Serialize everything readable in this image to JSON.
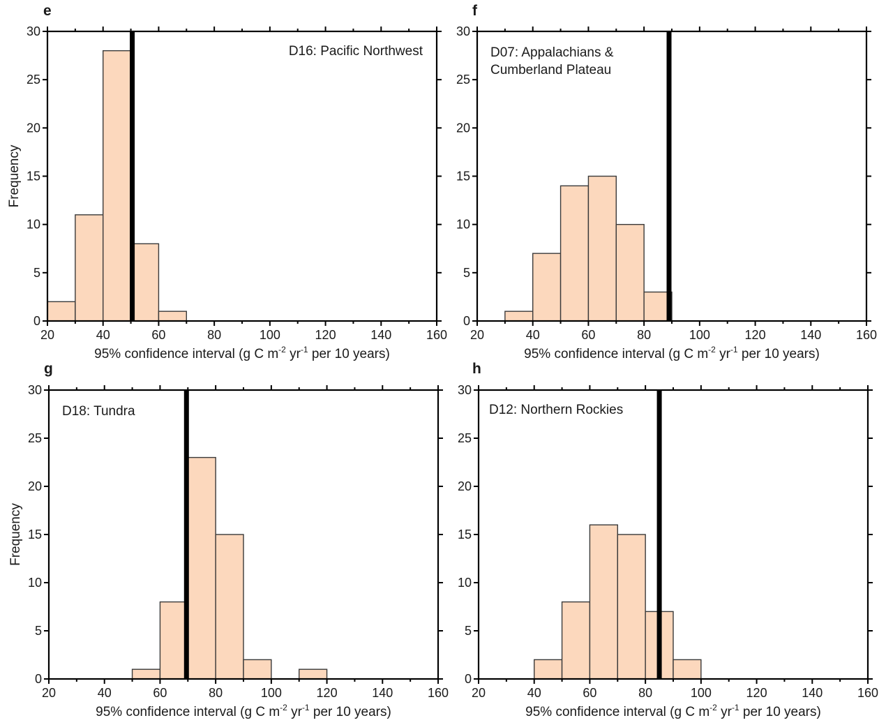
{
  "chart_data": [
    {
      "type": "bar",
      "panel": "e",
      "annotation": [
        "D16: Pacific Northwest"
      ],
      "xlabel": "95% confidence interval (g C m",
      "xlabel_sup1": "-2",
      "xlabel_mid": " yr",
      "xlabel_sup2": "-1",
      "xlabel_end": " per 10 years)",
      "ylabel": "Frequency",
      "xlim": [
        20,
        160
      ],
      "ylim": [
        0,
        30
      ],
      "xticks": [
        20,
        40,
        60,
        80,
        100,
        120,
        140,
        160
      ],
      "yticks": [
        0,
        5,
        10,
        15,
        20,
        25,
        30
      ],
      "bin_width": 10,
      "bins": [
        20,
        30,
        40,
        50,
        60
      ],
      "values": [
        2,
        11,
        28,
        8,
        1
      ],
      "reference_line": 50.5
    },
    {
      "type": "bar",
      "panel": "f",
      "annotation": [
        "D07: Appalachians &",
        "Cumberland Plateau"
      ],
      "xlabel": "95% confidence interval (g C m",
      "xlabel_sup1": "-2",
      "xlabel_mid": " yr",
      "xlabel_sup2": "-1",
      "xlabel_end": " per 10 years)",
      "ylabel": "",
      "xlim": [
        20,
        160
      ],
      "ylim": [
        0,
        30
      ],
      "xticks": [
        20,
        40,
        60,
        80,
        100,
        120,
        140,
        160
      ],
      "yticks": [
        0,
        5,
        10,
        15,
        20,
        25,
        30
      ],
      "bin_width": 10,
      "bins": [
        30,
        40,
        50,
        60,
        70,
        80
      ],
      "values": [
        1,
        7,
        14,
        15,
        10,
        3
      ],
      "reference_line": 89
    },
    {
      "type": "bar",
      "panel": "g",
      "annotation": [
        "D18: Tundra"
      ],
      "xlabel": "95% confidence interval (g C m",
      "xlabel_sup1": "-2",
      "xlabel_mid": " yr",
      "xlabel_sup2": "-1",
      "xlabel_end": " per 10 years)",
      "ylabel": "Frequency",
      "xlim": [
        20,
        160
      ],
      "ylim": [
        0,
        30
      ],
      "xticks": [
        20,
        40,
        60,
        80,
        100,
        120,
        140,
        160
      ],
      "yticks": [
        0,
        5,
        10,
        15,
        20,
        25,
        30
      ],
      "bin_width": 10,
      "bins": [
        50,
        60,
        70,
        80,
        90,
        110
      ],
      "values": [
        1,
        8,
        23,
        15,
        2,
        1
      ],
      "reference_line": 69.5
    },
    {
      "type": "bar",
      "panel": "h",
      "annotation": [
        "D12: Northern Rockies"
      ],
      "xlabel": "95% confidence interval (g C m",
      "xlabel_sup1": "-2",
      "xlabel_mid": " yr",
      "xlabel_sup2": "-1",
      "xlabel_end": " per 10 years)",
      "ylabel": "",
      "xlim": [
        20,
        160
      ],
      "ylim": [
        0,
        30
      ],
      "xticks": [
        20,
        40,
        60,
        80,
        100,
        120,
        140,
        160
      ],
      "yticks": [
        0,
        5,
        10,
        15,
        20,
        25,
        30
      ],
      "bin_width": 10,
      "bins": [
        40,
        50,
        60,
        70,
        80,
        90
      ],
      "values": [
        2,
        8,
        16,
        15,
        7,
        2
      ],
      "reference_line": 85
    }
  ],
  "colors": {
    "bar_fill": "#fcd8bd",
    "bar_stroke": "#3a3a3a",
    "reference_line": "#000000"
  }
}
